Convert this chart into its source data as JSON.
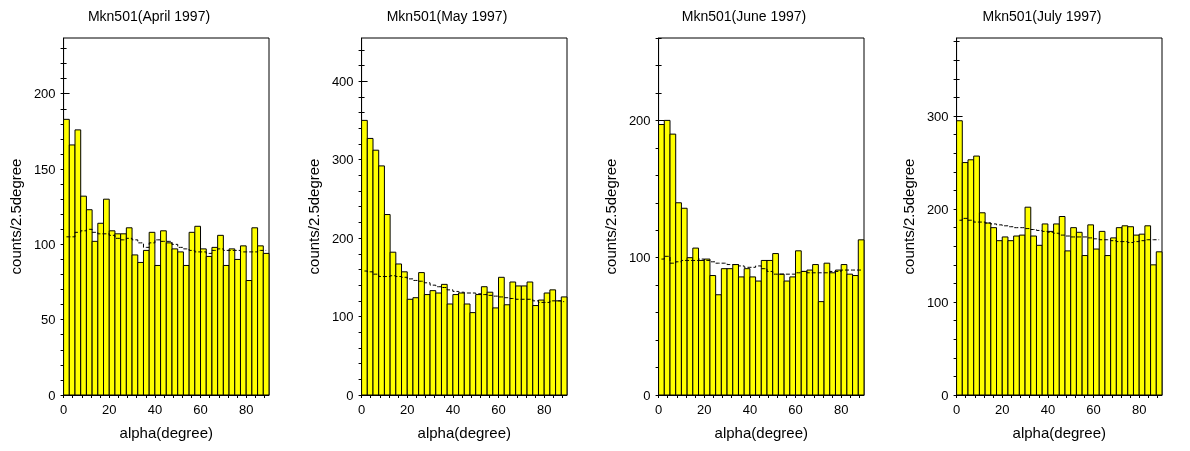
{
  "chart_data": [
    {
      "type": "histogram",
      "title": "Mkn501(April 1997)",
      "xlabel": "alpha(degree)",
      "ylabel": "counts/2.5degree",
      "bins": [
        0,
        2.5,
        5,
        7.5,
        10,
        12.5,
        15,
        17.5,
        20,
        22.5,
        25,
        27.5,
        30,
        32.5,
        35,
        37.5,
        40,
        42.5,
        45,
        47.5,
        50,
        52.5,
        55,
        57.5,
        60,
        62.5,
        65,
        67.5,
        70,
        72.5,
        75,
        77.5,
        80,
        82.5,
        85,
        87.5,
        90
      ],
      "xlim": [
        0,
        90
      ],
      "xticks": [
        0,
        20,
        40,
        60,
        80
      ],
      "ylim": [
        0,
        237
      ],
      "yticks": [
        0,
        50,
        100,
        150,
        200
      ],
      "series": [
        {
          "color": "#ffff00",
          "values": [
            183,
            166,
            176,
            132,
            123,
            102,
            114,
            130,
            109,
            107,
            107,
            111,
            93,
            88,
            96,
            108,
            86,
            109,
            101,
            97,
            95,
            86,
            108,
            112,
            97,
            92,
            98,
            106,
            86,
            97,
            90,
            99,
            76,
            111,
            99,
            94
          ]
        },
        {
          "type": "step",
          "color": "#000000",
          "line_style": "dashed",
          "marker": "none",
          "x": [
            1.25,
            3.75,
            6.25,
            8.75,
            11.25,
            13.75,
            16.25,
            18.75,
            21.25,
            23.75,
            26.25,
            28.75,
            31.25,
            33.75,
            36.25,
            38.75,
            41.25,
            43.75,
            46.25,
            48.75,
            51.25,
            53.75,
            56.25,
            58.75,
            61.25,
            63.75,
            66.25,
            68.75,
            71.25,
            73.75,
            76.25,
            78.75,
            81.25,
            83.75,
            86.25,
            88.75
          ],
          "values": [
            105,
            105,
            108,
            109,
            110,
            108,
            107,
            107,
            106,
            104,
            103,
            104,
            103,
            101,
            98,
            101,
            103,
            102,
            102,
            100,
            98,
            97,
            96,
            95,
            95,
            94,
            96,
            97,
            96,
            96,
            96,
            95,
            95,
            95,
            96,
            96
          ]
        }
      ]
    },
    {
      "type": "histogram",
      "title": "Mkn501(May 1997)",
      "xlabel": "alpha(degree)",
      "ylabel": "counts/2.5degree",
      "bins": [
        0,
        2.5,
        5,
        7.5,
        10,
        12.5,
        15,
        17.5,
        20,
        22.5,
        25,
        27.5,
        30,
        32.5,
        35,
        37.5,
        40,
        42.5,
        45,
        47.5,
        50,
        52.5,
        55,
        57.5,
        60,
        62.5,
        65,
        67.5,
        70,
        72.5,
        75,
        77.5,
        80,
        82.5,
        85,
        87.5,
        90
      ],
      "xlim": [
        0,
        90
      ],
      "xticks": [
        0,
        20,
        40,
        60,
        80
      ],
      "ylim": [
        0,
        455
      ],
      "yticks": [
        0,
        100,
        200,
        300,
        400
      ],
      "series": [
        {
          "color": "#ffff00",
          "values": [
            350,
            327,
            312,
            292,
            230,
            182,
            167,
            157,
            122,
            124,
            156,
            128,
            133,
            130,
            141,
            116,
            128,
            130,
            116,
            105,
            128,
            138,
            131,
            111,
            150,
            115,
            144,
            139,
            139,
            144,
            114,
            121,
            130,
            134,
            120,
            125
          ]
        },
        {
          "type": "step",
          "color": "#000000",
          "line_style": "dashed",
          "marker": "none",
          "x": [
            1.25,
            3.75,
            6.25,
            8.75,
            11.25,
            13.75,
            16.25,
            18.75,
            21.25,
            23.75,
            26.25,
            28.75,
            31.25,
            33.75,
            36.25,
            38.75,
            41.25,
            43.75,
            46.25,
            48.75,
            51.25,
            53.75,
            56.25,
            58.75,
            61.25,
            63.75,
            66.25,
            68.75,
            71.25,
            73.75,
            76.25,
            78.75,
            81.25,
            83.75,
            86.25,
            88.75
          ],
          "values": [
            158,
            157,
            154,
            151,
            151,
            152,
            151,
            150,
            148,
            146,
            145,
            143,
            140,
            138,
            137,
            134,
            132,
            131,
            130,
            130,
            129,
            128,
            127,
            126,
            125,
            124,
            123,
            122,
            122,
            122,
            120,
            118,
            118,
            120,
            120,
            119
          ]
        }
      ]
    },
    {
      "type": "histogram",
      "title": "Mkn501(June 1997)",
      "xlabel": "alpha(degree)",
      "ylabel": "counts/2.5degree",
      "bins": [
        0,
        2.5,
        5,
        7.5,
        10,
        12.5,
        15,
        17.5,
        20,
        22.5,
        25,
        27.5,
        30,
        32.5,
        35,
        37.5,
        40,
        42.5,
        45,
        47.5,
        50,
        52.5,
        55,
        57.5,
        60,
        62.5,
        65,
        67.5,
        70,
        72.5,
        75,
        77.5,
        80,
        82.5,
        85,
        87.5,
        90
      ],
      "xlim": [
        0,
        90
      ],
      "xticks": [
        0,
        20,
        40,
        60,
        80
      ],
      "ylim": [
        0,
        260
      ],
      "yticks": [
        0,
        100,
        200
      ],
      "series": [
        {
          "color": "#ffff00",
          "values": [
            197,
            200,
            190,
            140,
            136,
            100,
            107,
            98,
            99,
            87,
            73,
            92,
            92,
            95,
            86,
            92,
            86,
            83,
            98,
            98,
            103,
            88,
            83,
            86,
            105,
            90,
            91,
            95,
            68,
            96,
            89,
            91,
            95,
            88,
            87,
            113
          ]
        },
        {
          "type": "step",
          "color": "#000000",
          "line_style": "dashed",
          "marker": "none",
          "x": [
            1.25,
            3.75,
            6.25,
            8.75,
            11.25,
            13.75,
            16.25,
            18.75,
            21.25,
            23.75,
            26.25,
            28.75,
            31.25,
            33.75,
            36.25,
            38.75,
            41.25,
            43.75,
            46.25,
            48.75,
            51.25,
            53.75,
            56.25,
            58.75,
            61.25,
            63.75,
            66.25,
            68.75,
            71.25,
            73.75,
            76.25,
            78.75,
            81.25,
            83.75,
            86.25,
            88.75
          ],
          "values": [
            99,
            101,
            96,
            97,
            98,
            98,
            98,
            99,
            98,
            97,
            96,
            96,
            95,
            95,
            94,
            93,
            93,
            94,
            92,
            90,
            88,
            88,
            88,
            88,
            89,
            90,
            89,
            89,
            89,
            89,
            90,
            90,
            91,
            91,
            91,
            91
          ]
        }
      ]
    },
    {
      "type": "histogram",
      "title": "Mkn501(July 1997)",
      "xlabel": "alpha(degree)",
      "ylabel": "counts/2.5degree",
      "bins": [
        0,
        2.5,
        5,
        7.5,
        10,
        12.5,
        15,
        17.5,
        20,
        22.5,
        25,
        27.5,
        30,
        32.5,
        35,
        37.5,
        40,
        42.5,
        45,
        47.5,
        50,
        52.5,
        55,
        57.5,
        60,
        62.5,
        65,
        67.5,
        70,
        72.5,
        75,
        77.5,
        80,
        82.5,
        85,
        87.5,
        90
      ],
      "xlim": [
        0,
        90
      ],
      "xticks": [
        0,
        20,
        40,
        60,
        80
      ],
      "ylim": [
        0,
        384
      ],
      "yticks": [
        0,
        100,
        200,
        300
      ],
      "series": [
        {
          "color": "#ffff00",
          "values": [
            295,
            250,
            253,
            257,
            196,
            185,
            180,
            166,
            170,
            166,
            171,
            172,
            202,
            171,
            161,
            184,
            176,
            184,
            192,
            155,
            180,
            175,
            150,
            183,
            157,
            176,
            150,
            169,
            180,
            182,
            181,
            172,
            173,
            182,
            140,
            154
          ]
        },
        {
          "type": "step",
          "color": "#000000",
          "line_style": "dashed",
          "marker": "none",
          "x": [
            1.25,
            3.75,
            6.25,
            8.75,
            11.25,
            13.75,
            16.25,
            18.75,
            21.25,
            23.75,
            26.25,
            28.75,
            31.25,
            33.75,
            36.25,
            38.75,
            41.25,
            43.75,
            46.25,
            48.75,
            51.25,
            53.75,
            56.25,
            58.75,
            61.25,
            63.75,
            66.25,
            68.75,
            71.25,
            73.75,
            76.25,
            78.75,
            81.25,
            83.75,
            86.25,
            88.75
          ],
          "values": [
            188,
            190,
            188,
            186,
            186,
            185,
            184,
            183,
            182,
            181,
            180,
            180,
            179,
            178,
            177,
            176,
            175,
            174,
            172,
            171,
            170,
            170,
            170,
            169,
            168,
            167,
            167,
            166,
            165,
            165,
            164,
            165,
            166,
            167,
            167,
            167
          ]
        }
      ]
    }
  ]
}
